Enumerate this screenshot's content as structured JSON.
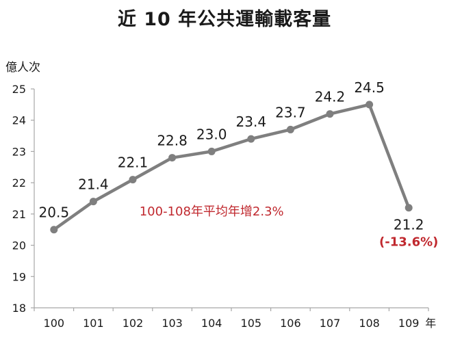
{
  "chart_data": {
    "type": "line",
    "title": "近 10 年公共運輸載客量",
    "ylabel": "億人次",
    "xlabel": "年",
    "categories": [
      "100",
      "101",
      "102",
      "103",
      "104",
      "105",
      "106",
      "107",
      "108",
      "109"
    ],
    "values": [
      20.5,
      21.4,
      22.1,
      22.8,
      23.0,
      23.4,
      23.7,
      24.2,
      24.5,
      21.2
    ],
    "value_labels": [
      "20.5",
      "21.4",
      "22.1",
      "22.8",
      "23.0",
      "23.4",
      "23.7",
      "24.2",
      "24.5",
      "21.2"
    ],
    "ylim": [
      18,
      25
    ],
    "yticks": [
      "18",
      "19",
      "20",
      "21",
      "22",
      "23",
      "24",
      "25"
    ],
    "grid": false,
    "annotations": {
      "average_growth": "100-108年平均年增2.3%",
      "last_change": "(-13.6%)"
    },
    "colors": {
      "line": "#7f7f7f",
      "annotation": "#c0282e",
      "axis": "#a6a6a6"
    }
  }
}
